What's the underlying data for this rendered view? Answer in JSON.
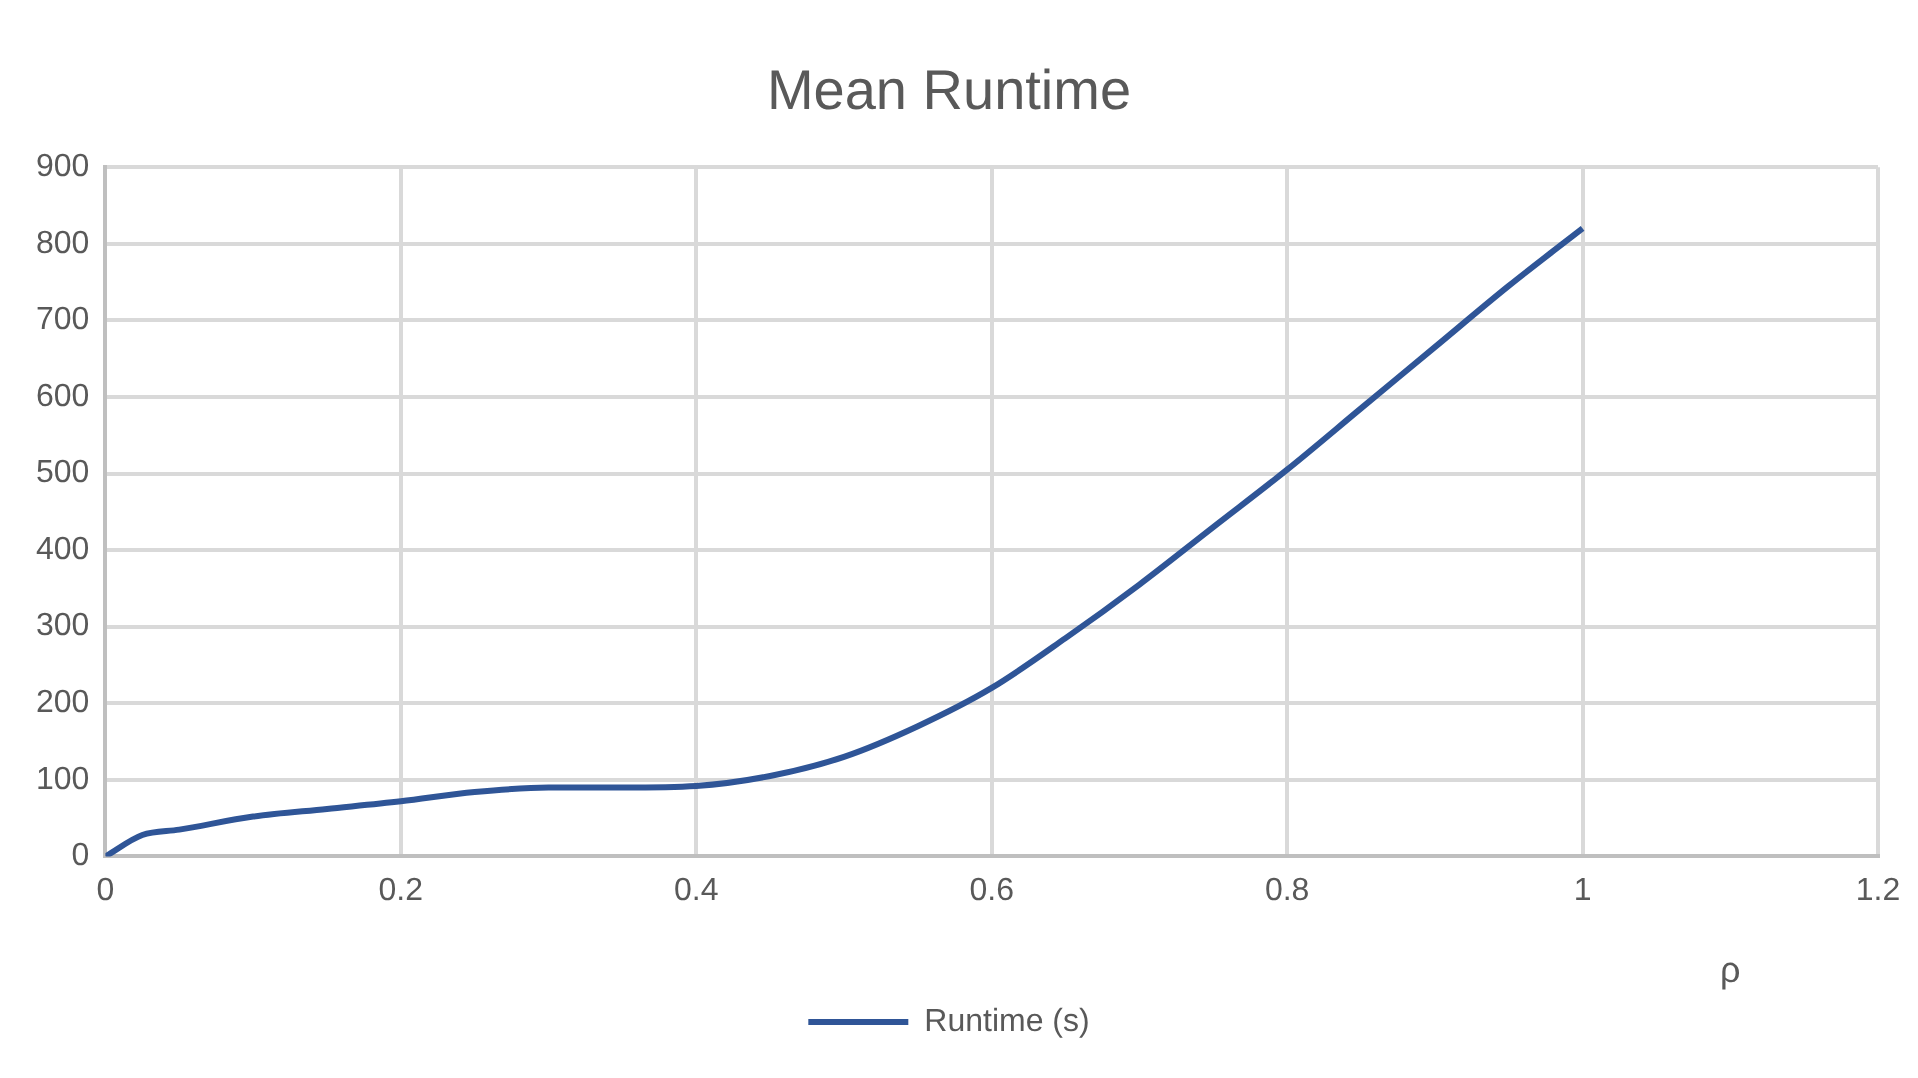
{
  "chart_data": {
    "type": "line",
    "title": "Mean Runtime",
    "xlabel": "ρ",
    "x": [
      0,
      0.025,
      0.05,
      0.1,
      0.15,
      0.2,
      0.25,
      0.3,
      0.35,
      0.4,
      0.45,
      0.5,
      0.55,
      0.6,
      0.65,
      0.7,
      0.75,
      0.8,
      0.85,
      0.9,
      0.95,
      1
    ],
    "series": [
      {
        "name": "Runtime (s)",
        "color": "#2f5597",
        "values": [
          0,
          28,
          35,
          52,
          62,
          72,
          84,
          90,
          90,
          92,
          105,
          130,
          170,
          220,
          285,
          355,
          430,
          505,
          585,
          665,
          745,
          820
        ]
      }
    ],
    "xlim": [
      0,
      1.2
    ],
    "xticks": [
      0,
      0.2,
      0.4,
      0.6,
      0.8,
      1,
      1.2
    ],
    "ylim": [
      0,
      900
    ],
    "yticks": [
      0,
      100,
      200,
      300,
      400,
      500,
      600,
      700,
      800,
      900
    ],
    "grid": true,
    "legend": "bottom",
    "marker": "none",
    "line_style": "solid"
  }
}
